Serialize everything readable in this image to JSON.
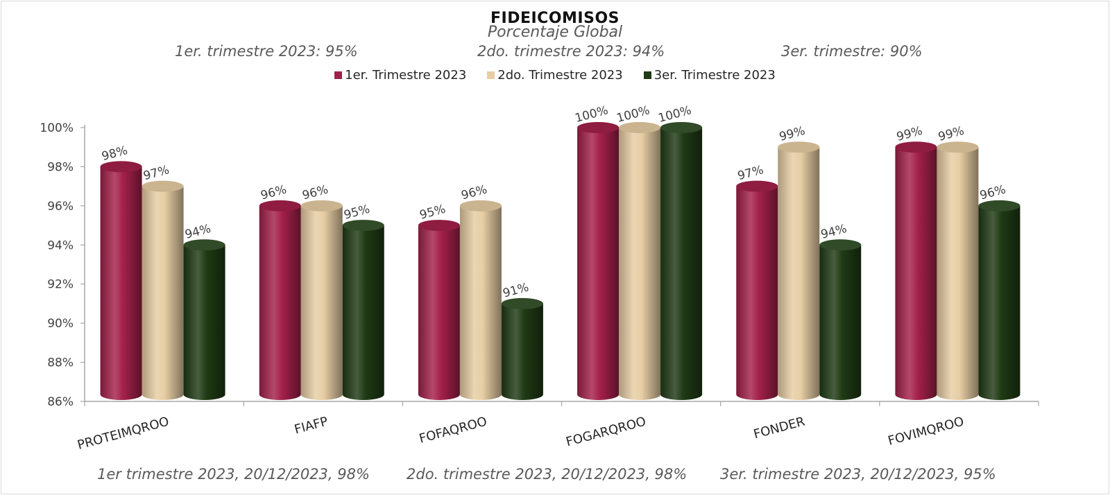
{
  "chart_data": {
    "type": "bar",
    "title": "FIDEICOMISOS",
    "subtitle": "Porcentaje Global",
    "notes": [
      "1er. trimestre 2023: 95%",
      "2do. trimestre 2023: 94%",
      "3er. trimestre: 90%"
    ],
    "categories": [
      "PROTEIMQROO",
      "FIAFP",
      "FOFAQROO",
      "FOGARQROO",
      "FONDER",
      "FOVIMQROO"
    ],
    "series": [
      {
        "name": "1er. Trimestre 2023",
        "color": "#a3204a",
        "values": [
          98,
          96,
          95,
          100,
          97,
          99
        ]
      },
      {
        "name": "2do. Trimestre 2023",
        "color": "#e6cda4",
        "values": [
          97,
          96,
          96,
          100,
          99,
          99
        ]
      },
      {
        "name": "3er. Trimestre 2023",
        "color": "#1f3a14",
        "values": [
          94,
          95,
          91,
          100,
          94,
          96
        ]
      }
    ],
    "data_labels": [
      [
        "98%",
        "96%",
        "95%",
        "100%",
        "97%",
        "99%"
      ],
      [
        "97%",
        "96%",
        "96%",
        "100%",
        "99%",
        "99%"
      ],
      [
        "94%",
        "95%",
        "91%",
        "100%",
        "94%",
        "96%"
      ]
    ],
    "ylim": [
      86,
      100
    ],
    "yticks": [
      "86%",
      "88%",
      "90%",
      "92%",
      "94%",
      "96%",
      "98%",
      "100%"
    ],
    "ytick_values": [
      86,
      88,
      90,
      92,
      94,
      96,
      98,
      100
    ],
    "legend_position": "top",
    "grid": false,
    "footnotes": [
      "1er trimestre  2023,  20/12/2023, 98%",
      "2do. trimestre 2023, 20/12/2023, 98%",
      "3er. trimestre 2023, 20/12/2023, 95%"
    ]
  }
}
